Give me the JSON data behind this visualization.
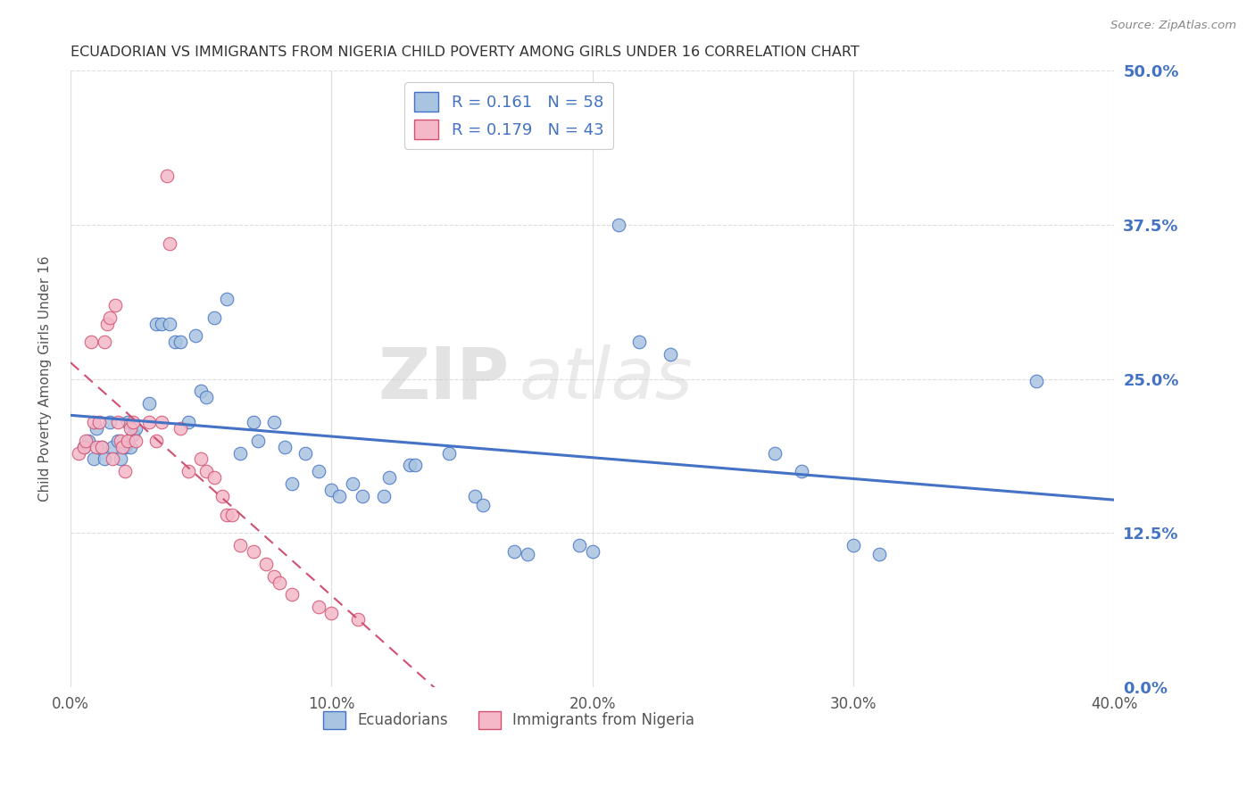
{
  "title": "ECUADORIAN VS IMMIGRANTS FROM NIGERIA CHILD POVERTY AMONG GIRLS UNDER 16 CORRELATION CHART",
  "source": "Source: ZipAtlas.com",
  "xlabel_ticks": [
    "0.0%",
    "10.0%",
    "20.0%",
    "30.0%",
    "40.0%"
  ],
  "xlabel_tick_vals": [
    0.0,
    0.1,
    0.2,
    0.3,
    0.4
  ],
  "ylabel": "Child Poverty Among Girls Under 16",
  "ylabel_ticks": [
    "0.0%",
    "12.5%",
    "25.0%",
    "37.5%",
    "50.0%"
  ],
  "ylabel_tick_vals": [
    0.0,
    0.125,
    0.25,
    0.375,
    0.5
  ],
  "xlim": [
    0.0,
    0.4
  ],
  "ylim": [
    0.0,
    0.5
  ],
  "blue_R": 0.161,
  "blue_N": 58,
  "pink_R": 0.179,
  "pink_N": 43,
  "blue_color": "#a8c4e0",
  "pink_color": "#f4b8c8",
  "blue_line_color": "#4472c4",
  "pink_line_color": "#d05070",
  "blue_scatter": [
    [
      0.005,
      0.195
    ],
    [
      0.007,
      0.2
    ],
    [
      0.009,
      0.185
    ],
    [
      0.01,
      0.21
    ],
    [
      0.012,
      0.195
    ],
    [
      0.013,
      0.185
    ],
    [
      0.015,
      0.215
    ],
    [
      0.016,
      0.195
    ],
    [
      0.018,
      0.2
    ],
    [
      0.019,
      0.185
    ],
    [
      0.021,
      0.195
    ],
    [
      0.022,
      0.215
    ],
    [
      0.023,
      0.195
    ],
    [
      0.024,
      0.205
    ],
    [
      0.025,
      0.21
    ],
    [
      0.03,
      0.23
    ],
    [
      0.033,
      0.295
    ],
    [
      0.035,
      0.295
    ],
    [
      0.038,
      0.295
    ],
    [
      0.04,
      0.28
    ],
    [
      0.042,
      0.28
    ],
    [
      0.045,
      0.215
    ],
    [
      0.048,
      0.285
    ],
    [
      0.05,
      0.24
    ],
    [
      0.052,
      0.235
    ],
    [
      0.055,
      0.3
    ],
    [
      0.06,
      0.315
    ],
    [
      0.065,
      0.19
    ],
    [
      0.07,
      0.215
    ],
    [
      0.072,
      0.2
    ],
    [
      0.078,
      0.215
    ],
    [
      0.082,
      0.195
    ],
    [
      0.085,
      0.165
    ],
    [
      0.09,
      0.19
    ],
    [
      0.095,
      0.175
    ],
    [
      0.1,
      0.16
    ],
    [
      0.103,
      0.155
    ],
    [
      0.108,
      0.165
    ],
    [
      0.112,
      0.155
    ],
    [
      0.12,
      0.155
    ],
    [
      0.122,
      0.17
    ],
    [
      0.13,
      0.18
    ],
    [
      0.132,
      0.18
    ],
    [
      0.145,
      0.19
    ],
    [
      0.155,
      0.155
    ],
    [
      0.158,
      0.148
    ],
    [
      0.17,
      0.11
    ],
    [
      0.175,
      0.108
    ],
    [
      0.195,
      0.115
    ],
    [
      0.2,
      0.11
    ],
    [
      0.21,
      0.375
    ],
    [
      0.218,
      0.28
    ],
    [
      0.23,
      0.27
    ],
    [
      0.27,
      0.19
    ],
    [
      0.28,
      0.175
    ],
    [
      0.3,
      0.115
    ],
    [
      0.31,
      0.108
    ],
    [
      0.37,
      0.248
    ]
  ],
  "pink_scatter": [
    [
      0.003,
      0.19
    ],
    [
      0.005,
      0.195
    ],
    [
      0.006,
      0.2
    ],
    [
      0.008,
      0.28
    ],
    [
      0.009,
      0.215
    ],
    [
      0.01,
      0.195
    ],
    [
      0.011,
      0.215
    ],
    [
      0.012,
      0.195
    ],
    [
      0.013,
      0.28
    ],
    [
      0.014,
      0.295
    ],
    [
      0.015,
      0.3
    ],
    [
      0.016,
      0.185
    ],
    [
      0.017,
      0.31
    ],
    [
      0.018,
      0.215
    ],
    [
      0.019,
      0.2
    ],
    [
      0.02,
      0.195
    ],
    [
      0.021,
      0.175
    ],
    [
      0.022,
      0.2
    ],
    [
      0.023,
      0.21
    ],
    [
      0.024,
      0.215
    ],
    [
      0.025,
      0.2
    ],
    [
      0.03,
      0.215
    ],
    [
      0.033,
      0.2
    ],
    [
      0.035,
      0.215
    ],
    [
      0.037,
      0.415
    ],
    [
      0.038,
      0.36
    ],
    [
      0.042,
      0.21
    ],
    [
      0.045,
      0.175
    ],
    [
      0.05,
      0.185
    ],
    [
      0.052,
      0.175
    ],
    [
      0.055,
      0.17
    ],
    [
      0.058,
      0.155
    ],
    [
      0.06,
      0.14
    ],
    [
      0.062,
      0.14
    ],
    [
      0.065,
      0.115
    ],
    [
      0.07,
      0.11
    ],
    [
      0.075,
      0.1
    ],
    [
      0.078,
      0.09
    ],
    [
      0.08,
      0.085
    ],
    [
      0.085,
      0.075
    ],
    [
      0.095,
      0.065
    ],
    [
      0.1,
      0.06
    ],
    [
      0.11,
      0.055
    ]
  ],
  "watermark_zip": "ZIP",
  "watermark_atlas": "atlas",
  "background_color": "#ffffff"
}
